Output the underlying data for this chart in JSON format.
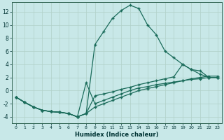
{
  "xlabel": "Humidex (Indice chaleur)",
  "bg_color": "#c8e8e8",
  "grid_color": "#b0d0c8",
  "line_color": "#1a6b5a",
  "xlim": [
    -0.5,
    23.5
  ],
  "ylim": [
    -5,
    13.5
  ],
  "xticks": [
    0,
    1,
    2,
    3,
    4,
    5,
    6,
    7,
    8,
    9,
    10,
    11,
    12,
    13,
    14,
    15,
    16,
    17,
    18,
    19,
    20,
    21,
    22,
    23
  ],
  "yticks": [
    -4,
    -2,
    0,
    2,
    4,
    6,
    8,
    10,
    12
  ],
  "line_peak_x": [
    0,
    1,
    2,
    3,
    4,
    5,
    6,
    7,
    8,
    9,
    10,
    11,
    12,
    13,
    14,
    15,
    16,
    17,
    18,
    19,
    20,
    21,
    22,
    23
  ],
  "line_peak_y": [
    -1.0,
    -1.8,
    -2.5,
    -3.0,
    -3.2,
    -3.3,
    -3.5,
    -4.0,
    -3.5,
    7.0,
    9.0,
    11.0,
    12.2,
    13.0,
    12.5,
    10.0,
    8.5,
    6.0,
    5.0,
    4.0,
    3.2,
    2.5,
    2.0,
    2.0
  ],
  "line_med_x": [
    0,
    1,
    2,
    3,
    4,
    5,
    6,
    7,
    8,
    9,
    10,
    11,
    12,
    13,
    14,
    15,
    16,
    17,
    18,
    19,
    20,
    21,
    22,
    23
  ],
  "line_med_y": [
    -1.0,
    -1.8,
    -2.5,
    -3.0,
    -3.2,
    -3.3,
    -3.5,
    -4.0,
    -3.5,
    -0.8,
    -0.5,
    -0.2,
    0.2,
    0.5,
    0.9,
    1.2,
    1.5,
    1.8,
    2.1,
    4.0,
    3.2,
    3.0,
    2.0,
    2.0
  ],
  "line_low1_x": [
    0,
    1,
    2,
    3,
    4,
    5,
    6,
    7,
    8,
    9,
    10,
    11,
    12,
    13,
    14,
    15,
    16,
    17,
    18,
    19,
    20,
    21,
    22,
    23
  ],
  "line_low1_y": [
    -1.0,
    -1.8,
    -2.5,
    -3.0,
    -3.2,
    -3.3,
    -3.5,
    -4.0,
    -3.5,
    -2.5,
    -2.0,
    -1.5,
    -1.0,
    -0.5,
    0.0,
    0.3,
    0.6,
    0.9,
    1.2,
    1.5,
    1.8,
    2.0,
    2.2,
    2.2
  ],
  "line_low2_x": [
    0,
    1,
    2,
    3,
    4,
    5,
    6,
    7,
    8,
    9,
    10,
    11,
    12,
    13,
    14,
    15,
    16,
    17,
    18,
    19,
    20,
    21,
    22,
    23
  ],
  "line_low2_y": [
    -1.0,
    -1.8,
    -2.5,
    -3.0,
    -3.2,
    -3.3,
    -3.5,
    -4.0,
    1.2,
    -2.0,
    -1.5,
    -1.0,
    -0.5,
    0.0,
    0.4,
    0.6,
    0.9,
    1.1,
    1.3,
    1.5,
    1.7,
    1.8,
    2.0,
    2.0
  ]
}
